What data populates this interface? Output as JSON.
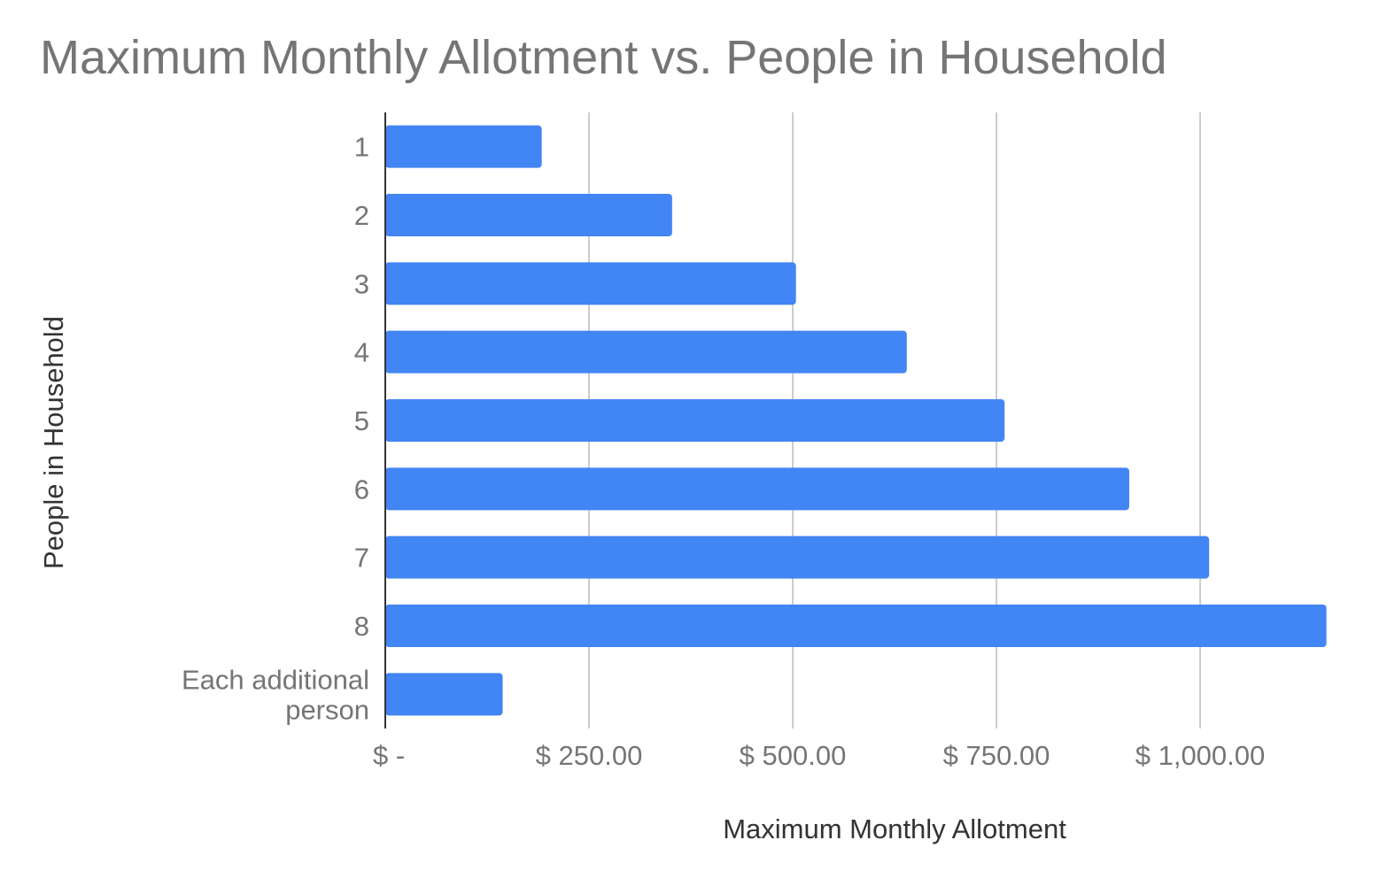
{
  "chart_data": {
    "type": "bar",
    "orientation": "horizontal",
    "title": "Maximum Monthly Allotment vs. People in Household",
    "xlabel": "Maximum Monthly Allotment",
    "ylabel": "People in Household",
    "categories": [
      "1",
      "2",
      "3",
      "4",
      "5",
      "6",
      "7",
      "8",
      "Each additional person"
    ],
    "category_lines": [
      [
        "1"
      ],
      [
        "2"
      ],
      [
        "3"
      ],
      [
        "4"
      ],
      [
        "5"
      ],
      [
        "6"
      ],
      [
        "7"
      ],
      [
        "8"
      ],
      [
        "Each additional",
        "person"
      ]
    ],
    "values": [
      192,
      352,
      504,
      640,
      760,
      913,
      1011,
      1155,
      144
    ],
    "xlim": [
      0,
      1150
    ],
    "x_ticks": [
      0,
      250,
      500,
      750,
      1000
    ],
    "x_tick_labels": [
      "$ -",
      "$ 250.00",
      "$ 500.00",
      "$ 750.00",
      "$ 1,000.00"
    ],
    "grid": true,
    "legend": "none",
    "colors": {
      "bar": "#4285f4",
      "grid": "#cccccc",
      "axis": "#333333",
      "text": "#757575",
      "title": "#757575"
    }
  }
}
